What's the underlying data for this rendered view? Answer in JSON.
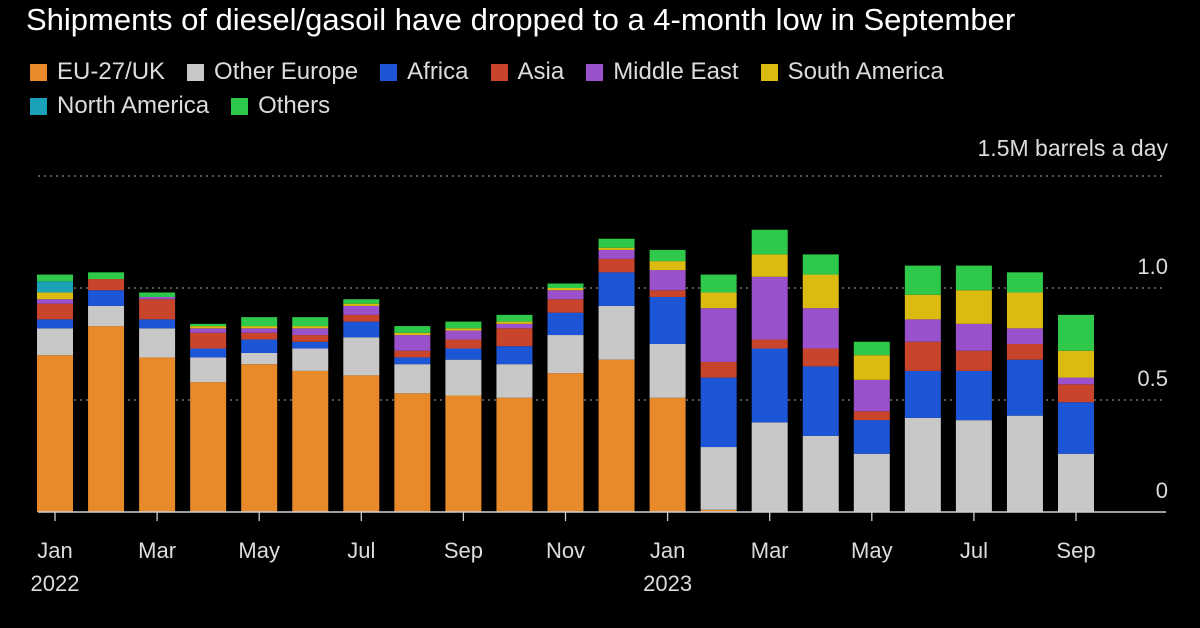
{
  "chart_data": {
    "type": "bar",
    "stacked": true,
    "title": "Shipments of diesel/gasoil have dropped to a 4-month low in September",
    "unit_label": "1.5M barrels a day",
    "ylim": [
      0,
      1.5
    ],
    "y_ticks": [
      {
        "value": 0,
        "label": "0"
      },
      {
        "value": 0.5,
        "label": "0.5"
      },
      {
        "value": 1.0,
        "label": "1.0"
      }
    ],
    "grid": true,
    "legend_position": "top-left",
    "x_tick_labels": [
      {
        "index": 0,
        "label": "Jan",
        "year": "2022"
      },
      {
        "index": 2,
        "label": "Mar"
      },
      {
        "index": 4,
        "label": "May"
      },
      {
        "index": 6,
        "label": "Jul"
      },
      {
        "index": 8,
        "label": "Sep"
      },
      {
        "index": 10,
        "label": "Nov"
      },
      {
        "index": 12,
        "label": "Jan",
        "year": "2023"
      },
      {
        "index": 14,
        "label": "Mar"
      },
      {
        "index": 16,
        "label": "May"
      },
      {
        "index": 18,
        "label": "Jul"
      },
      {
        "index": 20,
        "label": "Sep"
      }
    ],
    "categories": [
      "2022-01",
      "2022-02",
      "2022-03",
      "2022-04",
      "2022-05",
      "2022-06",
      "2022-07",
      "2022-08",
      "2022-09",
      "2022-10",
      "2022-11",
      "2022-12",
      "2023-01",
      "2023-02",
      "2023-03",
      "2023-04",
      "2023-05",
      "2023-06",
      "2023-07",
      "2023-08",
      "2023-09"
    ],
    "series": [
      {
        "name": "EU-27/UK",
        "color": "#e8892a",
        "values": [
          0.7,
          0.83,
          0.69,
          0.58,
          0.66,
          0.63,
          0.61,
          0.53,
          0.52,
          0.51,
          0.62,
          0.68,
          0.51,
          0.01,
          0.0,
          0.0,
          0.0,
          0.0,
          0.0,
          0.0,
          0.0
        ]
      },
      {
        "name": "Other Europe",
        "color": "#c8c8c8",
        "values": [
          0.12,
          0.09,
          0.13,
          0.11,
          0.05,
          0.1,
          0.17,
          0.13,
          0.16,
          0.15,
          0.17,
          0.24,
          0.24,
          0.28,
          0.4,
          0.34,
          0.26,
          0.42,
          0.41,
          0.43,
          0.26
        ]
      },
      {
        "name": "Africa",
        "color": "#1c56d6",
        "values": [
          0.04,
          0.07,
          0.04,
          0.04,
          0.06,
          0.03,
          0.07,
          0.03,
          0.05,
          0.08,
          0.1,
          0.15,
          0.21,
          0.31,
          0.33,
          0.31,
          0.15,
          0.21,
          0.22,
          0.25,
          0.23
        ]
      },
      {
        "name": "Asia",
        "color": "#c8442a",
        "values": [
          0.07,
          0.05,
          0.09,
          0.07,
          0.03,
          0.03,
          0.03,
          0.03,
          0.04,
          0.08,
          0.06,
          0.06,
          0.03,
          0.07,
          0.04,
          0.08,
          0.04,
          0.13,
          0.09,
          0.07,
          0.08
        ]
      },
      {
        "name": "Middle East",
        "color": "#9a52cc",
        "values": [
          0.02,
          0.0,
          0.01,
          0.02,
          0.02,
          0.03,
          0.04,
          0.07,
          0.04,
          0.02,
          0.04,
          0.04,
          0.09,
          0.24,
          0.28,
          0.18,
          0.14,
          0.1,
          0.12,
          0.07,
          0.03
        ]
      },
      {
        "name": "South America",
        "color": "#dcbb10",
        "values": [
          0.03,
          0.0,
          0.0,
          0.01,
          0.01,
          0.01,
          0.01,
          0.01,
          0.01,
          0.01,
          0.01,
          0.01,
          0.04,
          0.07,
          0.1,
          0.15,
          0.11,
          0.11,
          0.15,
          0.16,
          0.12
        ]
      },
      {
        "name": "North America",
        "color": "#1aa3b8",
        "values": [
          0.05,
          0.0,
          0.0,
          0.0,
          0.0,
          0.0,
          0.0,
          0.0,
          0.0,
          0.0,
          0.0,
          0.0,
          0.0,
          0.0,
          0.0,
          0.0,
          0.0,
          0.0,
          0.0,
          0.0,
          0.0
        ]
      },
      {
        "name": "Others",
        "color": "#2ec94a",
        "values": [
          0.03,
          0.03,
          0.02,
          0.01,
          0.04,
          0.04,
          0.02,
          0.03,
          0.03,
          0.03,
          0.02,
          0.04,
          0.05,
          0.08,
          0.11,
          0.09,
          0.06,
          0.13,
          0.11,
          0.09,
          0.16
        ]
      }
    ]
  }
}
